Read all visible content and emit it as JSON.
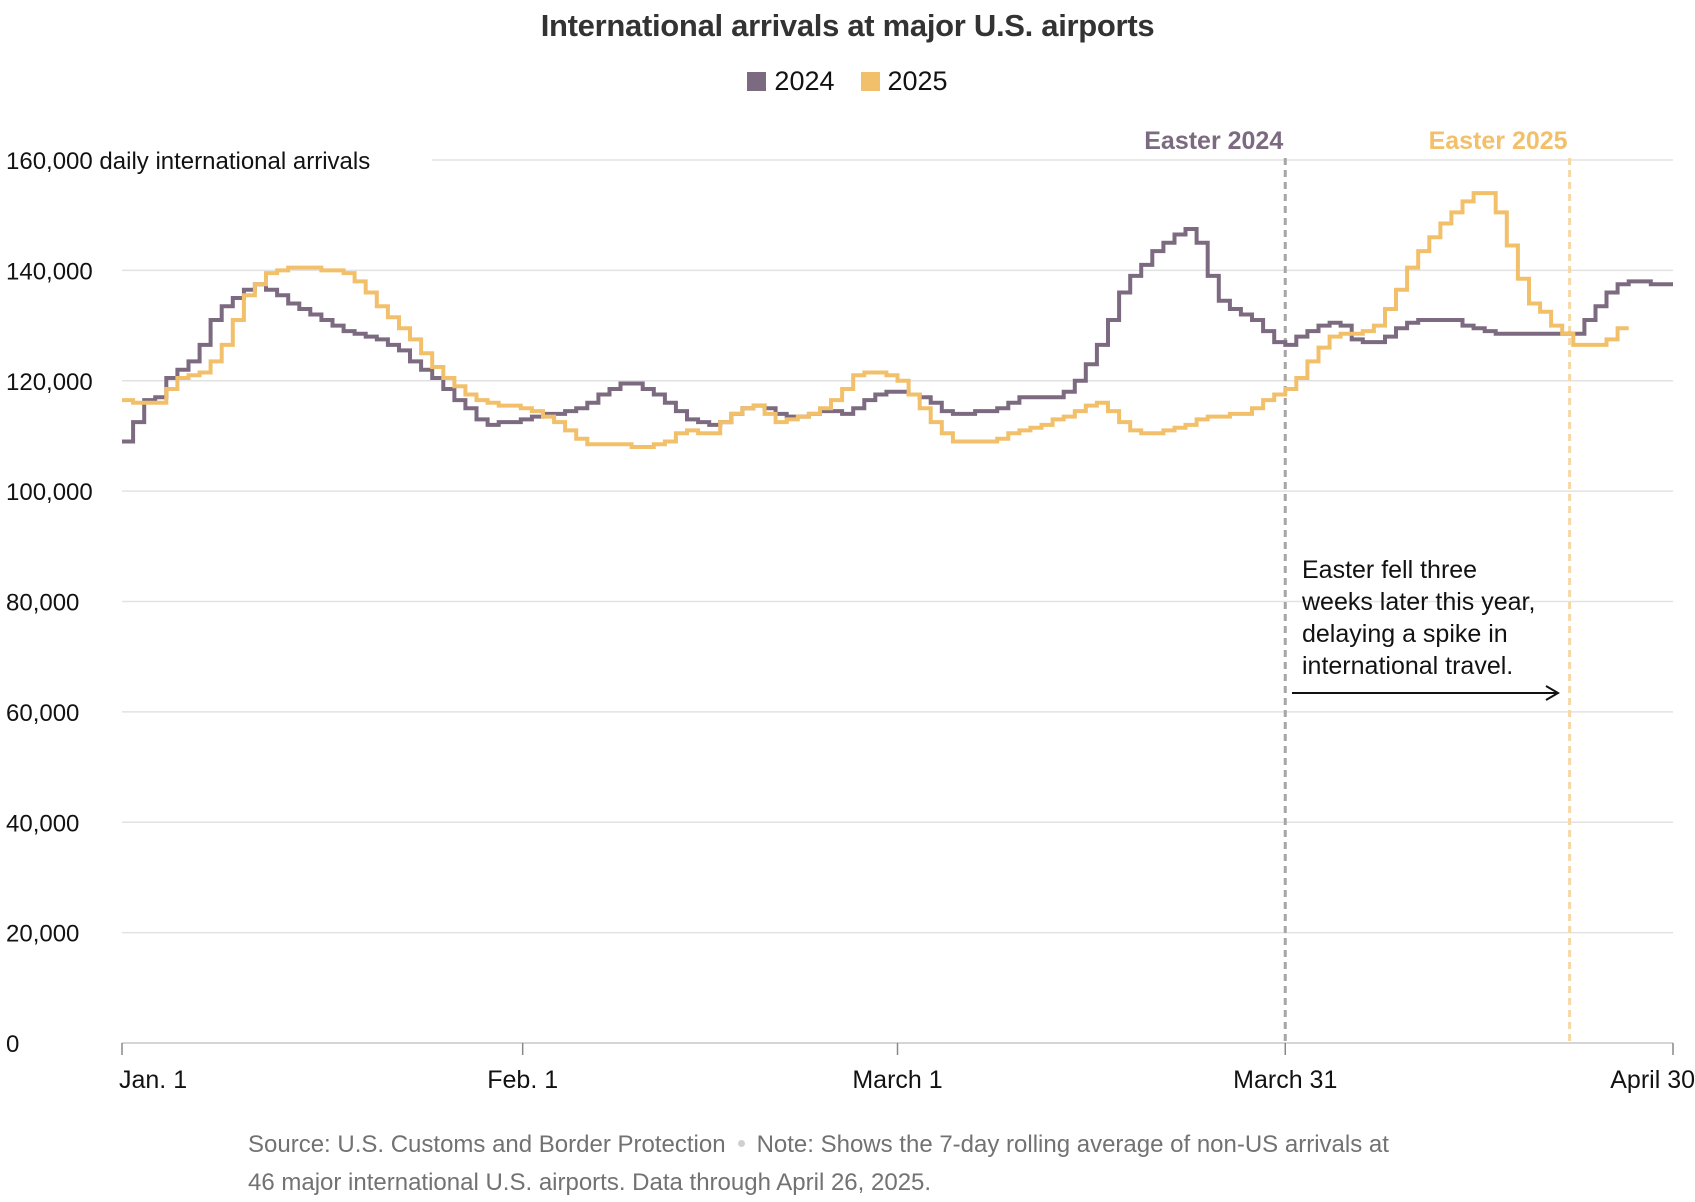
{
  "chart_data": {
    "type": "line",
    "step": true,
    "title": "International arrivals at major U.S. airports",
    "ylabel": "daily international arrivals",
    "xlim": [
      "Jan. 1",
      "April 30"
    ],
    "ylim": [
      0,
      160000
    ],
    "y_ticks": [
      0,
      20000,
      40000,
      60000,
      80000,
      100000,
      120000,
      140000,
      160000
    ],
    "y_tick_labels": [
      "0",
      "20,000",
      "40,000",
      "60,000",
      "80,000",
      "100,000",
      "120,000",
      "140,000",
      "160,000 daily international arrivals"
    ],
    "x_ticks": [
      {
        "label": "Jan. 1",
        "day": 1
      },
      {
        "label": "Feb. 1",
        "day": 32
      },
      {
        "label": "March 1",
        "day": 61
      },
      {
        "label": "March 31",
        "day": 91
      },
      {
        "label": "April 30",
        "day": 121
      }
    ],
    "grid": "horizontal",
    "legend": "top-center",
    "series": [
      {
        "name": "2024",
        "color": "#7c6a80",
        "x_start_day": 1,
        "values": [
          109000,
          112500,
          116500,
          117000,
          120500,
          122000,
          123500,
          126500,
          131000,
          133500,
          135000,
          136500,
          137500,
          136500,
          135500,
          134000,
          133000,
          132000,
          131000,
          130000,
          129000,
          128500,
          128000,
          127500,
          126500,
          125500,
          123500,
          122000,
          120500,
          118500,
          116500,
          115000,
          113000,
          112000,
          112500,
          112500,
          113000,
          113500,
          114000,
          114000,
          114500,
          115000,
          116000,
          117500,
          118500,
          119500,
          119500,
          118500,
          117500,
          116000,
          114500,
          113000,
          112500,
          112000,
          112500,
          114000,
          115000,
          115500,
          115000,
          114000,
          113500,
          113500,
          114000,
          114500,
          114500,
          114000,
          115000,
          116500,
          117500,
          118000,
          118000,
          117500,
          117000,
          116000,
          114500,
          114000,
          114000,
          114500,
          114500,
          115000,
          116000,
          117000,
          117000,
          117000,
          117000,
          118000,
          120000,
          123000,
          126500,
          131000,
          136000,
          139000,
          141000,
          143500,
          145000,
          146500,
          147500,
          145000,
          139000,
          134500,
          133000,
          132000,
          131000,
          129000,
          127000,
          126500,
          128000,
          129000,
          130000,
          130500,
          130000,
          127500,
          127000,
          127000,
          128000,
          129500,
          130500,
          131000,
          131000,
          131000,
          131000,
          130000,
          129500,
          129000,
          128500,
          128500,
          128500,
          128500,
          128500,
          128500,
          128500,
          128500,
          131000,
          133500,
          136000,
          137500,
          138000,
          138000,
          137500,
          137500
        ]
      },
      {
        "name": "2025",
        "color": "#f2c06a",
        "x_start_day": 1,
        "values": [
          116500,
          116000,
          116000,
          116000,
          118500,
          120500,
          121000,
          121500,
          123500,
          126500,
          131000,
          135500,
          137500,
          139500,
          140000,
          140500,
          140500,
          140500,
          140000,
          140000,
          139500,
          138000,
          136000,
          133500,
          131500,
          129500,
          127500,
          125000,
          122500,
          120500,
          119000,
          117500,
          116500,
          116000,
          115500,
          115500,
          115000,
          114500,
          113500,
          112500,
          111000,
          109500,
          108500,
          108500,
          108500,
          108500,
          108000,
          108000,
          108500,
          109000,
          110500,
          111000,
          110500,
          110500,
          112500,
          114000,
          115000,
          115500,
          114000,
          112500,
          113000,
          113500,
          114000,
          115000,
          116500,
          118500,
          121000,
          121500,
          121500,
          121000,
          120000,
          117500,
          115000,
          112500,
          110500,
          109000,
          109000,
          109000,
          109000,
          109500,
          110500,
          111000,
          111500,
          112000,
          113000,
          113500,
          114500,
          115500,
          116000,
          114500,
          112500,
          111000,
          110500,
          110500,
          111000,
          111500,
          112000,
          113000,
          113500,
          113500,
          114000,
          114000,
          115000,
          116500,
          117500,
          118500,
          120500,
          123500,
          126000,
          128000,
          128500,
          128500,
          129000,
          130000,
          133000,
          136500,
          140500,
          143500,
          146000,
          148500,
          150500,
          152500,
          154000,
          154000,
          150500,
          144500,
          138500,
          134000,
          132500,
          130000,
          128500,
          126500,
          126500,
          126500,
          127500,
          129500
        ]
      }
    ],
    "annotations": [
      {
        "label": "Easter 2024",
        "day": 91,
        "color": "#7c6a80"
      },
      {
        "label": "Easter 2025",
        "day": 113,
        "color": "#f2c06a"
      },
      {
        "text_lines": [
          "Easter fell three",
          "weeks later this year,",
          "delaying a spike in",
          "international travel."
        ]
      }
    ]
  },
  "footer": {
    "source": "Source: U.S. Customs and Border Protection",
    "note_line1": "Note: Shows the 7-day rolling average of non-US arrivals at",
    "note_line2": "46 major international U.S. airports. Data through April 26, 2025."
  }
}
